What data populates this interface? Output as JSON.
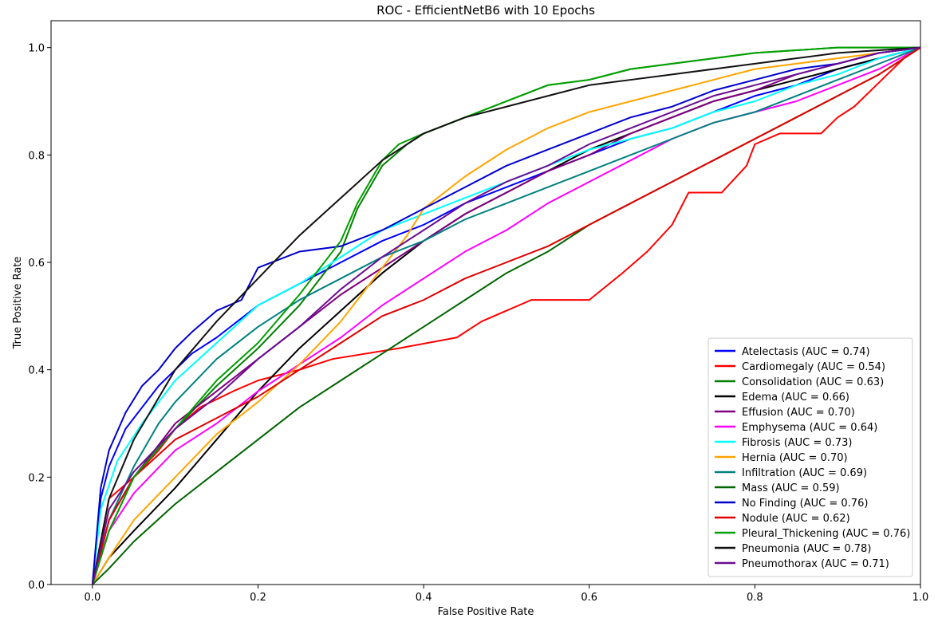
{
  "chart_data": {
    "type": "line",
    "title": "ROC - EfficientNetB6 with 10 Epochs",
    "xlabel": "False Positive Rate",
    "ylabel": "True Positive Rate",
    "xlim": [
      -0.05,
      1.0
    ],
    "ylim": [
      0.0,
      1.05
    ],
    "xticks": [
      "0.0",
      "0.2",
      "0.4",
      "0.6",
      "0.8",
      "1.0"
    ],
    "yticks": [
      "0.0",
      "0.2",
      "0.4",
      "0.6",
      "0.8",
      "1.0"
    ],
    "grid": false,
    "legend_position": "lower-right",
    "series": [
      {
        "name": "Atelectasis (AUC = 0.74)",
        "color": "#0000ff",
        "x": [
          0,
          0.01,
          0.02,
          0.04,
          0.06,
          0.08,
          0.1,
          0.12,
          0.15,
          0.2,
          0.25,
          0.3,
          0.35,
          0.4,
          0.45,
          0.5,
          0.55,
          0.6,
          0.65,
          0.7,
          0.75,
          0.8,
          0.85,
          0.9,
          0.95,
          1.0
        ],
        "y": [
          0,
          0.16,
          0.22,
          0.29,
          0.33,
          0.37,
          0.4,
          0.43,
          0.46,
          0.52,
          0.56,
          0.6,
          0.64,
          0.67,
          0.71,
          0.74,
          0.77,
          0.8,
          0.83,
          0.85,
          0.88,
          0.91,
          0.93,
          0.96,
          0.98,
          1.0
        ]
      },
      {
        "name": "Cardiomegaly (AUC = 0.54)",
        "color": "#ff0000",
        "x": [
          0,
          0.02,
          0.05,
          0.08,
          0.1,
          0.13,
          0.17,
          0.2,
          0.25,
          0.29,
          0.37,
          0.44,
          0.47,
          0.53,
          0.6,
          0.64,
          0.67,
          0.7,
          0.72,
          0.76,
          0.79,
          0.8,
          0.83,
          0.88,
          0.9,
          0.92,
          0.94,
          0.96,
          0.98,
          1.0
        ],
        "y": [
          0,
          0.16,
          0.2,
          0.25,
          0.29,
          0.33,
          0.36,
          0.38,
          0.4,
          0.42,
          0.44,
          0.46,
          0.49,
          0.53,
          0.53,
          0.58,
          0.62,
          0.67,
          0.73,
          0.73,
          0.78,
          0.82,
          0.84,
          0.84,
          0.87,
          0.89,
          0.92,
          0.95,
          0.98,
          1.0
        ]
      },
      {
        "name": "Consolidation (AUC = 0.63)",
        "color": "#008000",
        "x": [
          0,
          0.02,
          0.05,
          0.1,
          0.15,
          0.2,
          0.25,
          0.3,
          0.32,
          0.35,
          0.38,
          0.4,
          0.45,
          0.5,
          0.55,
          0.6,
          0.65,
          0.7,
          0.75,
          0.8,
          0.85,
          0.9,
          0.95,
          1.0
        ],
        "y": [
          0,
          0.1,
          0.2,
          0.29,
          0.37,
          0.44,
          0.52,
          0.62,
          0.7,
          0.78,
          0.82,
          0.84,
          0.87,
          0.9,
          0.93,
          0.94,
          0.96,
          0.97,
          0.98,
          0.99,
          0.995,
          1.0,
          1.0,
          1.0
        ]
      },
      {
        "name": "Edema (AUC = 0.66)",
        "color": "#000000",
        "x": [
          0,
          0.02,
          0.05,
          0.1,
          0.15,
          0.2,
          0.25,
          0.3,
          0.35,
          0.4,
          0.45,
          0.5,
          0.55,
          0.6,
          0.65,
          0.7,
          0.75,
          0.8,
          0.85,
          0.9,
          0.95,
          1.0
        ],
        "y": [
          0,
          0.05,
          0.1,
          0.18,
          0.27,
          0.36,
          0.44,
          0.51,
          0.58,
          0.64,
          0.69,
          0.73,
          0.77,
          0.81,
          0.84,
          0.87,
          0.9,
          0.92,
          0.94,
          0.96,
          0.98,
          1.0
        ]
      },
      {
        "name": "Effusion (AUC = 0.70)",
        "color": "#800080",
        "x": [
          0,
          0.02,
          0.05,
          0.1,
          0.15,
          0.2,
          0.25,
          0.3,
          0.35,
          0.4,
          0.45,
          0.5,
          0.55,
          0.6,
          0.65,
          0.7,
          0.75,
          0.8,
          0.85,
          0.9,
          0.95,
          1.0
        ],
        "y": [
          0,
          0.12,
          0.2,
          0.3,
          0.36,
          0.42,
          0.48,
          0.54,
          0.59,
          0.64,
          0.69,
          0.73,
          0.77,
          0.8,
          0.84,
          0.87,
          0.9,
          0.92,
          0.95,
          0.97,
          0.99,
          1.0
        ]
      },
      {
        "name": "Emphysema (AUC = 0.64)",
        "color": "#ff00ff",
        "x": [
          0,
          0.02,
          0.05,
          0.1,
          0.15,
          0.2,
          0.25,
          0.3,
          0.35,
          0.4,
          0.45,
          0.5,
          0.55,
          0.6,
          0.65,
          0.7,
          0.75,
          0.8,
          0.85,
          0.9,
          0.95,
          1.0
        ],
        "y": [
          0,
          0.1,
          0.17,
          0.25,
          0.3,
          0.36,
          0.41,
          0.46,
          0.52,
          0.57,
          0.62,
          0.66,
          0.71,
          0.75,
          0.79,
          0.83,
          0.86,
          0.88,
          0.9,
          0.93,
          0.96,
          1.0
        ]
      },
      {
        "name": "Fibrosis (AUC = 0.73)",
        "color": "#00ffff",
        "x": [
          0,
          0.01,
          0.03,
          0.06,
          0.1,
          0.15,
          0.2,
          0.25,
          0.3,
          0.35,
          0.4,
          0.45,
          0.5,
          0.55,
          0.6,
          0.65,
          0.7,
          0.75,
          0.8,
          0.85,
          0.9,
          0.95,
          1.0
        ],
        "y": [
          0,
          0.14,
          0.23,
          0.3,
          0.38,
          0.45,
          0.52,
          0.56,
          0.61,
          0.66,
          0.69,
          0.72,
          0.75,
          0.78,
          0.81,
          0.83,
          0.85,
          0.88,
          0.9,
          0.93,
          0.95,
          0.98,
          1.0
        ]
      },
      {
        "name": "Hernia (AUC = 0.70)",
        "color": "#ffa500",
        "x": [
          0,
          0.02,
          0.05,
          0.1,
          0.15,
          0.2,
          0.25,
          0.3,
          0.35,
          0.38,
          0.4,
          0.45,
          0.5,
          0.55,
          0.6,
          0.65,
          0.7,
          0.75,
          0.8,
          0.85,
          0.9,
          0.95,
          1.0
        ],
        "y": [
          0,
          0.05,
          0.12,
          0.2,
          0.28,
          0.34,
          0.41,
          0.49,
          0.59,
          0.65,
          0.7,
          0.76,
          0.81,
          0.85,
          0.88,
          0.9,
          0.92,
          0.94,
          0.96,
          0.97,
          0.98,
          0.99,
          1.0
        ]
      },
      {
        "name": "Infiltration (AUC = 0.69)",
        "color": "#008080",
        "x": [
          0,
          0.02,
          0.05,
          0.08,
          0.1,
          0.15,
          0.2,
          0.25,
          0.3,
          0.35,
          0.4,
          0.45,
          0.5,
          0.55,
          0.6,
          0.65,
          0.7,
          0.75,
          0.8,
          0.85,
          0.9,
          0.95,
          1.0
        ],
        "y": [
          0,
          0.12,
          0.22,
          0.3,
          0.34,
          0.42,
          0.48,
          0.53,
          0.57,
          0.61,
          0.64,
          0.68,
          0.71,
          0.74,
          0.77,
          0.8,
          0.83,
          0.86,
          0.88,
          0.91,
          0.94,
          0.97,
          1.0
        ]
      },
      {
        "name": "Mass (AUC = 0.59)",
        "color": "#006400",
        "x": [
          0,
          0.02,
          0.05,
          0.1,
          0.15,
          0.2,
          0.25,
          0.3,
          0.35,
          0.4,
          0.45,
          0.5,
          0.55,
          0.6,
          0.65,
          0.7,
          0.75,
          0.8,
          0.85,
          0.9,
          0.95,
          1.0
        ],
        "y": [
          0,
          0.03,
          0.08,
          0.15,
          0.21,
          0.27,
          0.33,
          0.38,
          0.43,
          0.48,
          0.53,
          0.58,
          0.62,
          0.67,
          0.71,
          0.75,
          0.79,
          0.83,
          0.87,
          0.91,
          0.95,
          1.0
        ]
      },
      {
        "name": "No Finding (AUC = 0.76)",
        "color": "#0000cd",
        "x": [
          0,
          0.01,
          0.02,
          0.04,
          0.06,
          0.08,
          0.1,
          0.12,
          0.15,
          0.18,
          0.2,
          0.25,
          0.3,
          0.35,
          0.4,
          0.45,
          0.5,
          0.55,
          0.6,
          0.65,
          0.7,
          0.75,
          0.8,
          0.85,
          0.9,
          0.95,
          1.0
        ],
        "y": [
          0,
          0.18,
          0.25,
          0.32,
          0.37,
          0.4,
          0.44,
          0.47,
          0.51,
          0.53,
          0.59,
          0.62,
          0.63,
          0.66,
          0.7,
          0.74,
          0.78,
          0.81,
          0.84,
          0.87,
          0.89,
          0.92,
          0.94,
          0.96,
          0.97,
          0.99,
          1.0
        ]
      },
      {
        "name": "Nodule (AUC = 0.62)",
        "color": "#e00000",
        "x": [
          0,
          0.02,
          0.05,
          0.1,
          0.15,
          0.2,
          0.25,
          0.3,
          0.35,
          0.4,
          0.45,
          0.5,
          0.55,
          0.6,
          0.65,
          0.7,
          0.75,
          0.8,
          0.85,
          0.9,
          0.95,
          1.0
        ],
        "y": [
          0,
          0.12,
          0.2,
          0.27,
          0.31,
          0.35,
          0.4,
          0.45,
          0.5,
          0.53,
          0.57,
          0.6,
          0.63,
          0.67,
          0.71,
          0.75,
          0.79,
          0.83,
          0.87,
          0.91,
          0.95,
          1.0
        ]
      },
      {
        "name": "Pleural_Thickening (AUC = 0.76)",
        "color": "#00a000",
        "x": [
          0,
          0.02,
          0.05,
          0.1,
          0.15,
          0.2,
          0.25,
          0.3,
          0.32,
          0.35,
          0.37,
          0.4,
          0.45,
          0.5,
          0.55,
          0.6,
          0.65,
          0.7,
          0.75,
          0.8,
          0.85,
          0.9,
          0.95,
          1.0
        ],
        "y": [
          0,
          0.1,
          0.2,
          0.29,
          0.38,
          0.45,
          0.54,
          0.64,
          0.71,
          0.79,
          0.82,
          0.84,
          0.87,
          0.9,
          0.93,
          0.94,
          0.96,
          0.97,
          0.98,
          0.99,
          0.995,
          1.0,
          1.0,
          1.0
        ]
      },
      {
        "name": "Pneumonia (AUC = 0.78)",
        "color": "#111111",
        "x": [
          0,
          0.02,
          0.05,
          0.1,
          0.15,
          0.2,
          0.25,
          0.3,
          0.35,
          0.4,
          0.45,
          0.5,
          0.55,
          0.6,
          0.65,
          0.7,
          0.75,
          0.8,
          0.85,
          0.9,
          0.95,
          1.0
        ],
        "y": [
          0,
          0.16,
          0.27,
          0.4,
          0.49,
          0.57,
          0.65,
          0.72,
          0.79,
          0.84,
          0.87,
          0.89,
          0.91,
          0.93,
          0.94,
          0.95,
          0.96,
          0.97,
          0.98,
          0.99,
          0.995,
          1.0
        ]
      },
      {
        "name": "Pneumothorax (AUC = 0.71)",
        "color": "#6a0d91",
        "x": [
          0,
          0.02,
          0.05,
          0.1,
          0.15,
          0.2,
          0.25,
          0.3,
          0.35,
          0.4,
          0.45,
          0.5,
          0.55,
          0.6,
          0.65,
          0.7,
          0.75,
          0.8,
          0.85,
          0.9,
          0.95,
          1.0
        ],
        "y": [
          0,
          0.14,
          0.21,
          0.29,
          0.35,
          0.42,
          0.48,
          0.55,
          0.61,
          0.66,
          0.71,
          0.75,
          0.78,
          0.82,
          0.85,
          0.88,
          0.91,
          0.93,
          0.95,
          0.97,
          0.99,
          1.0
        ]
      }
    ]
  }
}
